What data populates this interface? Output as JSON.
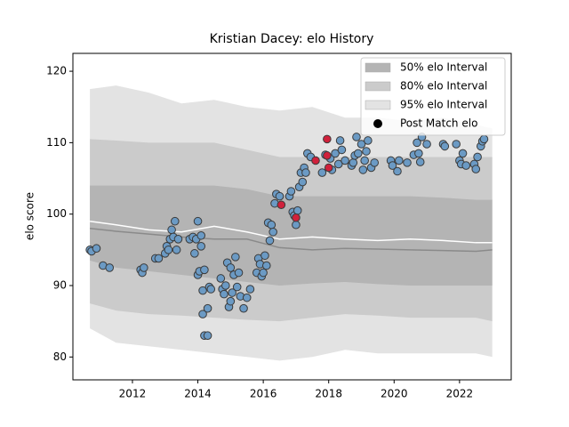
{
  "chart_data": {
    "type": "scatter",
    "title": "Kristian Dacey: elo History",
    "ylabel": "elo score",
    "xlim": [
      2010.18,
      2023.58
    ],
    "ylim": [
      76.8,
      122.5
    ],
    "xticks": [
      2012,
      2014,
      2016,
      2018,
      2020,
      2022
    ],
    "yticks": [
      80,
      90,
      100,
      110,
      120
    ],
    "legend": "upper right",
    "legend_marker_color": "#000000",
    "band_x": [
      2010.7,
      2011.5,
      2012.5,
      2013.5,
      2014.5,
      2015.5,
      2016.5,
      2017.5,
      2018.5,
      2019.5,
      2020.5,
      2021.5,
      2022.5,
      2023
    ],
    "bands": [
      {
        "name": "95% elo Interval",
        "color": "#e3e3e3",
        "upper": [
          117.5,
          118,
          117,
          115.5,
          116,
          115,
          114.5,
          115,
          113.5,
          113.5,
          113,
          113.5,
          112.5,
          112
        ],
        "lower": [
          84,
          82,
          81.5,
          81,
          80.5,
          80,
          79.5,
          80,
          81,
          80.5,
          80.5,
          80.5,
          80.5,
          80
        ]
      },
      {
        "name": "80% elo Interval",
        "color": "#cbcbcb",
        "upper": [
          110.5,
          110.3,
          110,
          110,
          110,
          109,
          108,
          108,
          108,
          108,
          108,
          108,
          108,
          108
        ],
        "lower": [
          87.5,
          86.5,
          86,
          85.8,
          85.5,
          85.2,
          85,
          85.5,
          86,
          85.8,
          85.5,
          85.5,
          85.5,
          85
        ]
      },
      {
        "name": "50% elo Interval",
        "color": "#b4b4b4",
        "upper": [
          104,
          104,
          104,
          104,
          104,
          103.5,
          102.5,
          102.5,
          102.5,
          102.5,
          102.5,
          102.3,
          102,
          102
        ],
        "lower": [
          93.5,
          92.5,
          92,
          91.5,
          91,
          90.5,
          90,
          90.3,
          90.5,
          90.2,
          90,
          90,
          90,
          90
        ]
      }
    ],
    "lines": [
      {
        "color": "#ffffff",
        "values": [
          99,
          98.5,
          97.8,
          97.5,
          98.3,
          97.5,
          96.5,
          96.8,
          96.5,
          96.3,
          96.5,
          96.3,
          96,
          96
        ]
      },
      {
        "color": "#8a8a8a",
        "values": [
          98,
          97.6,
          97.2,
          96.8,
          96.5,
          96.5,
          95.3,
          95,
          95.2,
          95.1,
          95,
          94.9,
          94.8,
          95
        ]
      }
    ],
    "series": [
      {
        "name": "Post Match elo",
        "color": "#6b9ac4",
        "x": [
          2010.7,
          2010.75,
          2010.9,
          2011.1,
          2011.3,
          2012.25,
          2012.3,
          2012.35,
          2012.7,
          2012.8,
          2013.0,
          2013.05,
          2013.1,
          2013.15,
          2013.2,
          2013.25,
          2013.3,
          2013.35,
          2013.4,
          2013.75,
          2013.85,
          2013.9,
          2013.95,
          2014.0,
          2014.0,
          2014.05,
          2014.1,
          2014.1,
          2014.15,
          2014.2,
          2014.15,
          2014.2,
          2014.3,
          2014.3,
          2014.35,
          2014.4,
          2014.7,
          2014.75,
          2014.8,
          2014.85,
          2014.9,
          2014.95,
          2015.0,
          2015.0,
          2015.05,
          2015.1,
          2015.15,
          2015.2,
          2015.25,
          2015.3,
          2015.4,
          2015.5,
          2015.6,
          2015.8,
          2015.85,
          2015.9,
          2015.95,
          2016.0,
          2016.05,
          2016.1,
          2016.15,
          2016.2,
          2016.25,
          2016.3,
          2016.35,
          2016.4,
          2016.5,
          2016.8,
          2016.85,
          2016.9,
          2016.95,
          2017.0,
          2017.05,
          2017.1,
          2017.15,
          2017.2,
          2017.25,
          2017.3,
          2017.35,
          2017.45,
          2017.8,
          2017.9,
          2018.05,
          2018.1,
          2018.2,
          2018.3,
          2018.35,
          2018.4,
          2018.5,
          2018.7,
          2018.75,
          2018.8,
          2018.85,
          2018.9,
          2019.0,
          2019.05,
          2019.1,
          2019.15,
          2019.2,
          2019.3,
          2019.4,
          2019.9,
          2019.95,
          2020.1,
          2020.15,
          2020.4,
          2020.6,
          2020.7,
          2020.75,
          2020.8,
          2020.85,
          2021.0,
          2021.5,
          2021.55,
          2021.9,
          2022.0,
          2022.05,
          2022.1,
          2022.2,
          2022.45,
          2022.5,
          2022.55,
          2022.65,
          2022.7,
          2022.75
        ],
        "values": [
          95,
          94.8,
          95.2,
          92.8,
          92.5,
          92.2,
          91.8,
          92.5,
          93.8,
          93.8,
          94.5,
          95.5,
          95,
          96.5,
          97.8,
          96.8,
          99,
          95,
          96.5,
          96.5,
          96.8,
          94.5,
          96.5,
          99,
          91.5,
          92,
          97,
          95.5,
          89.3,
          92.2,
          86,
          83,
          83,
          86.8,
          89.8,
          89.5,
          91,
          89.5,
          88.8,
          90,
          93.2,
          87,
          92.5,
          87.8,
          89,
          91.5,
          94,
          89.8,
          91.8,
          88.5,
          86.8,
          88.3,
          89.5,
          91.8,
          93.8,
          93,
          91.3,
          91.8,
          94.2,
          92.8,
          98.8,
          96.3,
          98.5,
          97.5,
          101.5,
          102.8,
          102.5,
          102.5,
          103.2,
          100.3,
          99.8,
          98.5,
          100.5,
          103.8,
          105.8,
          104.5,
          106.5,
          105.8,
          108.5,
          108,
          105.8,
          108.3,
          107.8,
          106.2,
          108.5,
          107,
          110.3,
          109,
          107.5,
          106.8,
          107.2,
          108.2,
          110.8,
          108.5,
          109.8,
          106.2,
          107.5,
          108.8,
          110.3,
          106.5,
          107.2,
          107.5,
          106.8,
          106,
          107.5,
          107.2,
          108.3,
          110,
          108.5,
          107.3,
          110.8,
          109.8,
          109.8,
          109.5,
          109.8,
          107.5,
          107,
          108.5,
          106.8,
          107,
          106.3,
          108,
          109.5,
          110.2,
          110.5
        ]
      },
      {
        "color": "#d0213b",
        "x": [
          2016.55,
          2017.0,
          2017.6,
          2017.95,
          2017.95,
          2018.0
        ],
        "values": [
          101.3,
          99.5,
          107.5,
          110.5,
          108.2,
          106.5
        ]
      }
    ]
  }
}
